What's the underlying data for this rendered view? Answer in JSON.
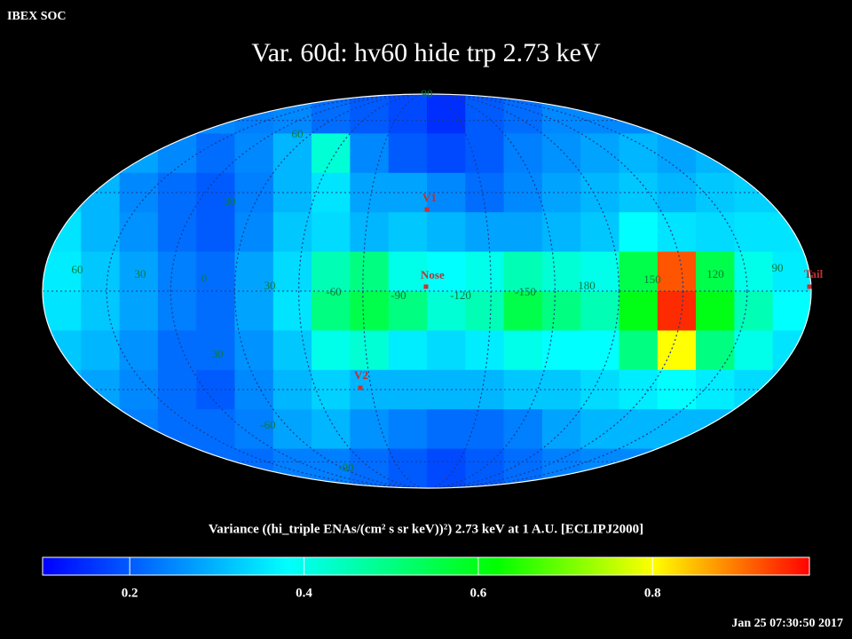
{
  "header": "IBEX SOC",
  "title": "Var. 60d: hv60 hide trp 2.73 keV",
  "timestamp": "Jan 25 07:30:50 2017",
  "map": {
    "cells": [
      [
        0.25,
        0.25,
        0.25,
        0.25,
        0.25,
        0.24,
        0.25,
        0.22,
        0.2,
        0.18,
        0.15,
        0.2,
        0.22,
        0.25,
        0.25,
        0.25,
        0.25,
        0.25,
        0.25,
        0.25
      ],
      [
        0.3,
        0.3,
        0.28,
        0.25,
        0.22,
        0.25,
        0.3,
        0.42,
        0.25,
        0.2,
        0.18,
        0.2,
        0.24,
        0.26,
        0.28,
        0.3,
        0.28,
        0.3,
        0.3,
        0.3
      ],
      [
        0.33,
        0.3,
        0.25,
        0.22,
        0.2,
        0.24,
        0.3,
        0.35,
        0.28,
        0.28,
        0.25,
        0.22,
        0.25,
        0.28,
        0.3,
        0.32,
        0.3,
        0.32,
        0.33,
        0.33
      ],
      [
        0.35,
        0.3,
        0.26,
        0.22,
        0.2,
        0.25,
        0.32,
        0.34,
        0.3,
        0.32,
        0.3,
        0.28,
        0.28,
        0.3,
        0.32,
        0.38,
        0.35,
        0.34,
        0.35,
        0.35
      ],
      [
        0.36,
        0.32,
        0.28,
        0.24,
        0.22,
        0.28,
        0.34,
        0.45,
        0.5,
        0.4,
        0.38,
        0.4,
        0.45,
        0.42,
        0.4,
        0.55,
        0.92,
        0.55,
        0.4,
        0.36
      ],
      [
        0.35,
        0.32,
        0.28,
        0.24,
        0.22,
        0.28,
        0.35,
        0.5,
        0.55,
        0.5,
        0.42,
        0.45,
        0.55,
        0.5,
        0.45,
        0.6,
        0.95,
        0.6,
        0.45,
        0.38
      ],
      [
        0.32,
        0.3,
        0.26,
        0.22,
        0.22,
        0.26,
        0.32,
        0.4,
        0.42,
        0.36,
        0.34,
        0.36,
        0.4,
        0.38,
        0.38,
        0.5,
        0.8,
        0.5,
        0.4,
        0.35
      ],
      [
        0.3,
        0.28,
        0.25,
        0.22,
        0.2,
        0.25,
        0.3,
        0.33,
        0.3,
        0.3,
        0.3,
        0.3,
        0.32,
        0.32,
        0.34,
        0.36,
        0.38,
        0.36,
        0.34,
        0.32
      ],
      [
        0.28,
        0.26,
        0.24,
        0.22,
        0.22,
        0.24,
        0.28,
        0.3,
        0.26,
        0.24,
        0.22,
        0.22,
        0.24,
        0.28,
        0.3,
        0.3,
        0.3,
        0.3,
        0.28,
        0.28
      ],
      [
        0.25,
        0.25,
        0.24,
        0.22,
        0.22,
        0.22,
        0.24,
        0.24,
        0.22,
        0.2,
        0.18,
        0.2,
        0.22,
        0.24,
        0.25,
        0.25,
        0.25,
        0.25,
        0.25,
        0.25
      ]
    ],
    "longitude_labels": [
      "60",
      "30",
      "0",
      "30",
      "-60",
      "-90",
      "-120",
      "-150",
      "180",
      "150",
      "120",
      "90"
    ],
    "latitude_labels": [
      "90",
      "60",
      "30",
      "30",
      "-60",
      "-90"
    ],
    "markers": [
      {
        "label": "V1"
      },
      {
        "label": "Nose"
      },
      {
        "label": "V2"
      },
      {
        "label": "Tail"
      }
    ]
  },
  "colorbar": {
    "label": "Variance ((hi_triple ENAs/(cm² s sr keV))²) 2.73 keV at 1 A.U. [ECLIPJ2000]",
    "lim": [
      0.1,
      0.98
    ],
    "ticks": [
      0.2,
      0.4,
      0.6,
      0.8
    ],
    "colormap": [
      {
        "value": 0.1,
        "color": "#0000ff"
      },
      {
        "value": 0.38,
        "color": "#00ffff"
      },
      {
        "value": 0.62,
        "color": "#00ff00"
      },
      {
        "value": 0.8,
        "color": "#ffff00"
      },
      {
        "value": 0.98,
        "color": "#ff0000"
      }
    ]
  }
}
